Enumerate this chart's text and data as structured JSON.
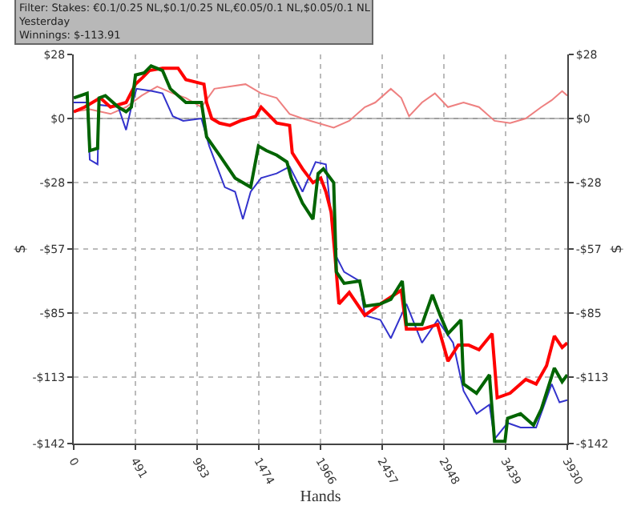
{
  "chart_data": {
    "type": "line",
    "xlabel": "Hands",
    "ylabel": "$",
    "y2label": "$",
    "annotations": [
      "Filter: Stakes: €0.1/0.25 NL,$0.1/0.25 NL,€0.05/0.1 NL,$0.05/0.1 NL",
      "Yesterday",
      "Winnings: $-113.91"
    ],
    "xlim": [
      0,
      3930
    ],
    "xticks": [
      0,
      491,
      983,
      1474,
      1966,
      2457,
      2948,
      3439,
      3930
    ],
    "ylim": [
      -142,
      28
    ],
    "yticks": [
      {
        "value": 28,
        "label": "$28"
      },
      {
        "value": 0,
        "label": "$0"
      },
      {
        "value": -28,
        "label": "-$28"
      },
      {
        "value": -57,
        "label": "-$57"
      },
      {
        "value": -85,
        "label": "-$85"
      },
      {
        "value": -113,
        "label": "-$113"
      },
      {
        "value": -142,
        "label": "-$142"
      }
    ],
    "y2lim": [
      -142,
      28
    ],
    "y2ticks": [
      {
        "value": 28,
        "label": "$28"
      },
      {
        "value": 0,
        "label": "$0"
      },
      {
        "value": -28,
        "label": "-$28"
      },
      {
        "value": -57,
        "label": "-$57"
      },
      {
        "value": -85,
        "label": "-$85"
      },
      {
        "value": -113,
        "label": "-$113"
      },
      {
        "value": -142,
        "label": "-$142"
      }
    ],
    "grid": true,
    "marker": "none",
    "line_style": "solid",
    "ref_lines": [
      {
        "axis": "y",
        "value": 0,
        "label": null,
        "color": "#a0a0a0"
      }
    ],
    "series": [
      {
        "color": "#ee8080",
        "x": [
          0,
          128,
          293,
          417,
          541,
          665,
          789,
          893,
          1017,
          1120,
          1244,
          1368,
          1492,
          1616,
          1719,
          1822,
          1946,
          2070,
          2194,
          2318,
          2401,
          2525,
          2608,
          2670,
          2773,
          2876,
          2980,
          3104,
          3227,
          3351,
          3475,
          3599,
          3723,
          3806,
          3889,
          3930
        ],
        "values": [
          3,
          4,
          2,
          5,
          10,
          14,
          11,
          9,
          5,
          13,
          14,
          15,
          11,
          9,
          2,
          0,
          -2,
          -4,
          -1,
          5,
          7,
          13,
          9,
          1,
          7,
          11,
          5,
          7,
          5,
          -1,
          -2,
          0,
          5,
          8,
          12,
          10
        ]
      },
      {
        "color": "#3333cc",
        "x": [
          0,
          107,
          128,
          190,
          202,
          355,
          417,
          459,
          500,
          624,
          707,
          789,
          872,
          1017,
          1079,
          1203,
          1285,
          1347,
          1409,
          1492,
          1616,
          1719,
          1822,
          1926,
          2008,
          2079,
          2153,
          2277,
          2318,
          2442,
          2525,
          2649,
          2773,
          2897,
          3021,
          3104,
          3207,
          3310,
          3351,
          3455,
          3558,
          3682,
          3806,
          3868,
          3930
        ],
        "values": [
          7,
          7,
          -18,
          -20,
          6,
          5,
          -5,
          5,
          13,
          12,
          11,
          1,
          -1,
          0,
          -12,
          -30,
          -32,
          -44,
          -32,
          -26,
          -24,
          -21,
          -32,
          -19,
          -20,
          -59,
          -67,
          -71,
          -86,
          -88,
          -96,
          -81,
          -98,
          -88,
          -98,
          -119,
          -129,
          -125,
          -140,
          -133,
          -135,
          -135,
          -116,
          -124,
          -123
        ]
      },
      {
        "color": "#ff0000",
        "x": [
          0,
          87,
          211,
          293,
          417,
          492,
          550,
          603,
          707,
          831,
          893,
          1037,
          1058,
          1099,
          1161,
          1244,
          1327,
          1450,
          1492,
          1616,
          1719,
          1740,
          1822,
          1905,
          1967,
          2008,
          2050,
          2079,
          2112,
          2194,
          2318,
          2442,
          2608,
          2649,
          2773,
          2897,
          2980,
          3062,
          3145,
          3227,
          3331,
          3372,
          3475,
          3599,
          3682,
          3765,
          3827,
          3889,
          3930
        ],
        "values": [
          2.9,
          5,
          9,
          5,
          7,
          15,
          18,
          21,
          22,
          22,
          17,
          15,
          7,
          0,
          -2,
          -3,
          -1,
          1,
          5,
          -2,
          -3,
          -15,
          -22,
          -28,
          -26,
          -32,
          -41,
          -59,
          -81,
          -76,
          -86,
          -81,
          -75,
          -92,
          -92,
          -90,
          -106,
          -99,
          -99,
          -101,
          -94,
          -122,
          -120,
          -114,
          -116,
          -108,
          -95,
          -100,
          -98
        ]
      },
      {
        "color": "#006400",
        "x": [
          0,
          107,
          128,
          190,
          202,
          252,
          355,
          417,
          459,
          492,
          562,
          616,
          707,
          769,
          893,
          1017,
          1058,
          1161,
          1285,
          1409,
          1471,
          1533,
          1616,
          1698,
          1732,
          1822,
          1905,
          1946,
          1988,
          2070,
          2091,
          2153,
          2277,
          2318,
          2442,
          2525,
          2616,
          2649,
          2773,
          2856,
          2918,
          2980,
          3083,
          3104,
          3207,
          3310,
          3351,
          3434,
          3455,
          3558,
          3661,
          3723,
          3827,
          3889,
          3930
        ],
        "values": [
          9,
          11,
          -14,
          -13,
          9,
          10,
          5,
          3,
          5,
          19,
          20,
          23,
          21,
          13,
          7,
          7,
          -8,
          -16,
          -26,
          -30,
          -12,
          -14,
          -16,
          -19,
          -26,
          -37,
          -44,
          -24,
          -22,
          -28,
          -67,
          -72,
          -71,
          -82,
          -81,
          -79,
          -71,
          -90,
          -90,
          -77,
          -86,
          -94,
          -88,
          -116,
          -120,
          -112,
          -141,
          -141,
          -131,
          -129,
          -134,
          -127,
          -109,
          -115,
          -112
        ]
      }
    ]
  }
}
